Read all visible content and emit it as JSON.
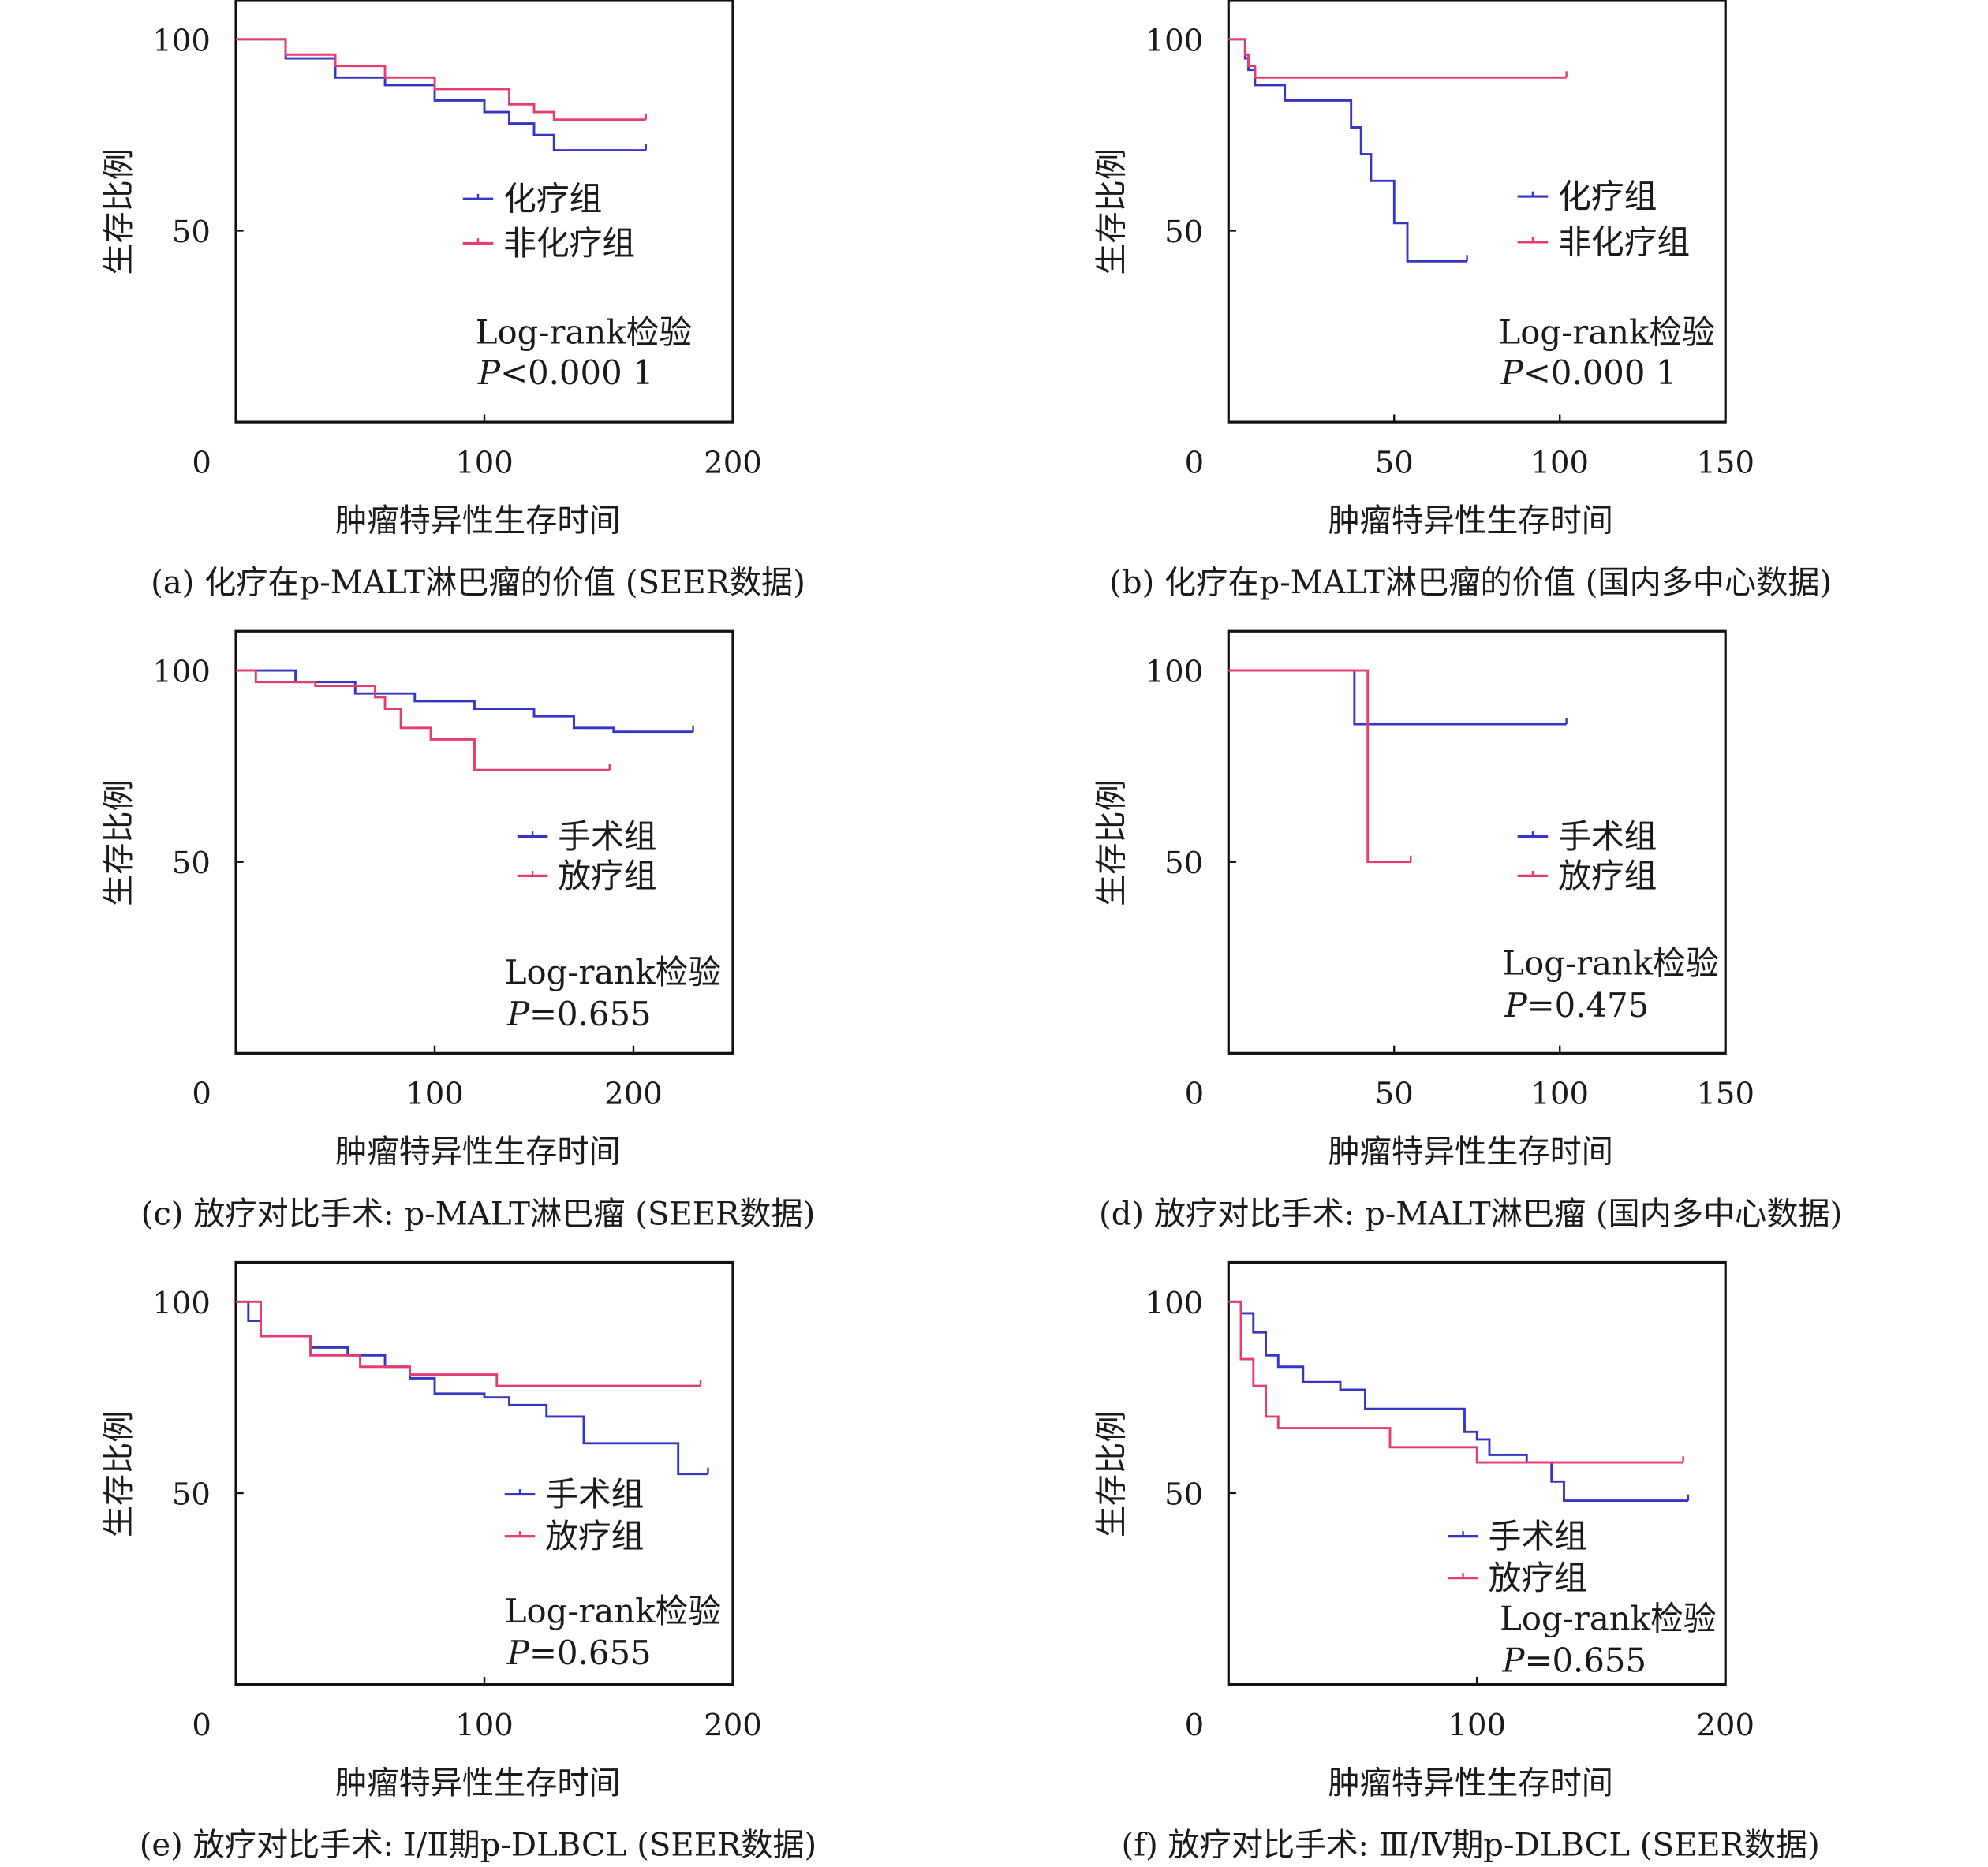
{
  "colors": {
    "group1": "#3535c8",
    "group2": "#e63c6e",
    "axis": "#111111"
  },
  "chart_data": [
    {
      "type": "line",
      "id": "a",
      "caption": "(a) 化疗在p-MALT淋巴瘤的价值 (SEER数据)",
      "xlabel": "肿瘤特异性生存时间",
      "ylabel": "生存比例",
      "xlim": [
        0,
        200
      ],
      "ylim": [
        0,
        110
      ],
      "xticks": [
        "0",
        "100",
        "200"
      ],
      "xtick_values": [
        0,
        100,
        200
      ],
      "yticks": [
        "50",
        "100"
      ],
      "ytick_values": [
        50,
        100
      ],
      "legend_position": "center-right",
      "series": [
        {
          "name": "化疗组",
          "color_key": "group1",
          "points": [
            [
              0,
              100
            ],
            [
              20,
              95
            ],
            [
              40,
              90
            ],
            [
              60,
              88
            ],
            [
              80,
              84
            ],
            [
              100,
              81
            ],
            [
              110,
              78
            ],
            [
              120,
              75
            ],
            [
              128,
              71
            ],
            [
              165,
              71
            ]
          ]
        },
        {
          "name": "非化疗组",
          "color_key": "group2",
          "points": [
            [
              0,
              100
            ],
            [
              20,
              96
            ],
            [
              40,
              93
            ],
            [
              60,
              90
            ],
            [
              80,
              87
            ],
            [
              110,
              83
            ],
            [
              120,
              81
            ],
            [
              128,
              79
            ],
            [
              165,
              79
            ]
          ]
        }
      ],
      "test": "Log-rank检验",
      "p_symbol": "P",
      "p_text": "<0.000 1"
    },
    {
      "type": "line",
      "id": "b",
      "caption": "(b) 化疗在p-MALT淋巴瘤的价值 (国内多中心数据)",
      "xlabel": "肿瘤特异性生存时间",
      "ylabel": "生存比例",
      "xlim": [
        0,
        150
      ],
      "ylim": [
        0,
        110
      ],
      "xticks": [
        "0",
        "50",
        "100",
        "150"
      ],
      "xtick_values": [
        0,
        50,
        100,
        150
      ],
      "yticks": [
        "50",
        "100"
      ],
      "ytick_values": [
        50,
        100
      ],
      "legend_position": "center-right",
      "series": [
        {
          "name": "化疗组",
          "color_key": "group1",
          "points": [
            [
              0,
              100
            ],
            [
              4,
              100
            ],
            [
              5,
              95
            ],
            [
              6,
              92
            ],
            [
              8,
              88
            ],
            [
              17,
              88
            ],
            [
              17,
              84
            ],
            [
              37,
              84
            ],
            [
              37,
              77
            ],
            [
              40,
              77
            ],
            [
              40,
              70
            ],
            [
              43,
              70
            ],
            [
              43,
              63
            ],
            [
              50,
              63
            ],
            [
              50,
              52
            ],
            [
              54,
              52
            ],
            [
              54,
              42
            ],
            [
              72,
              42
            ]
          ]
        },
        {
          "name": "非化疗组",
          "color_key": "group2",
          "points": [
            [
              0,
              100
            ],
            [
              4,
              100
            ],
            [
              5,
              96
            ],
            [
              6,
              93
            ],
            [
              8,
              90
            ],
            [
              102,
              90
            ]
          ]
        }
      ],
      "test": "Log-rank检验",
      "p_symbol": "P",
      "p_text": "<0.000 1"
    },
    {
      "type": "line",
      "id": "c",
      "caption": "(c) 放疗对比手术: p-MALT淋巴瘤 (SEER数据)",
      "xlabel": "肿瘤特异性生存时间",
      "ylabel": "生存比例",
      "xlim": [
        0,
        250
      ],
      "ylim": [
        0,
        110
      ],
      "xticks": [
        "0",
        "100",
        "200"
      ],
      "xtick_values": [
        0,
        100,
        200
      ],
      "yticks": [
        "50",
        "100"
      ],
      "ytick_values": [
        50,
        100
      ],
      "legend_position": "center-right",
      "series": [
        {
          "name": "手术组",
          "color_key": "group1",
          "points": [
            [
              0,
              100
            ],
            [
              30,
              97
            ],
            [
              60,
              94
            ],
            [
              90,
              92
            ],
            [
              120,
              90
            ],
            [
              150,
              88
            ],
            [
              170,
              85
            ],
            [
              190,
              84
            ],
            [
              230,
              84
            ]
          ]
        },
        {
          "name": "放疗组",
          "color_key": "group2",
          "points": [
            [
              0,
              100
            ],
            [
              10,
              97
            ],
            [
              40,
              96
            ],
            [
              70,
              93
            ],
            [
              75,
              90
            ],
            [
              83,
              85
            ],
            [
              98,
              85
            ],
            [
              98,
              82
            ],
            [
              120,
              82
            ],
            [
              120,
              74
            ],
            [
              188,
              74
            ]
          ]
        }
      ],
      "test": "Log-rank检验",
      "p_symbol": "P",
      "p_text": "=0.655"
    },
    {
      "type": "line",
      "id": "d",
      "caption": "(d) 放疗对比手术: p-MALT淋巴瘤 (国内多中心数据)",
      "xlabel": "肿瘤特异性生存时间",
      "ylabel": "生存比例",
      "xlim": [
        0,
        150
      ],
      "ylim": [
        0,
        110
      ],
      "xticks": [
        "0",
        "50",
        "100",
        "150"
      ],
      "xtick_values": [
        0,
        50,
        100,
        150
      ],
      "yticks": [
        "50",
        "100"
      ],
      "ytick_values": [
        50,
        100
      ],
      "legend_position": "center-right",
      "series": [
        {
          "name": "手术组",
          "color_key": "group1",
          "points": [
            [
              0,
              100
            ],
            [
              38,
              100
            ],
            [
              38,
              86
            ],
            [
              102,
              86
            ]
          ]
        },
        {
          "name": "放疗组",
          "color_key": "group2",
          "points": [
            [
              0,
              100
            ],
            [
              42,
              100
            ],
            [
              42,
              50
            ],
            [
              55,
              50
            ]
          ]
        }
      ],
      "test": "Log-rank检验",
      "p_symbol": "P",
      "p_text": "=0.475"
    },
    {
      "type": "line",
      "id": "e",
      "caption": "(e) 放疗对比手术: Ⅰ/Ⅱ期p-DLBCL (SEER数据)",
      "xlabel": "肿瘤特异性生存时间",
      "ylabel": "生存比例",
      "xlim": [
        0,
        200
      ],
      "ylim": [
        0,
        110
      ],
      "xticks": [
        "0",
        "100",
        "200"
      ],
      "xtick_values": [
        0,
        100,
        200
      ],
      "yticks": [
        "50",
        "100"
      ],
      "ytick_values": [
        50,
        100
      ],
      "legend_position": "center-right",
      "series": [
        {
          "name": "手术组",
          "color_key": "group1",
          "points": [
            [
              0,
              100
            ],
            [
              5,
              95
            ],
            [
              10,
              91
            ],
            [
              30,
              88
            ],
            [
              45,
              86
            ],
            [
              60,
              83
            ],
            [
              70,
              80
            ],
            [
              80,
              76
            ],
            [
              100,
              75
            ],
            [
              110,
              73
            ],
            [
              125,
              70
            ],
            [
              140,
              63
            ],
            [
              178,
              63
            ],
            [
              178,
              55
            ],
            [
              190,
              55
            ]
          ]
        },
        {
          "name": "放疗组",
          "color_key": "group2",
          "points": [
            [
              0,
              100
            ],
            [
              10,
              91
            ],
            [
              30,
              86
            ],
            [
              50,
              83
            ],
            [
              70,
              81
            ],
            [
              105,
              81
            ],
            [
              105,
              78
            ],
            [
              187,
              78
            ]
          ]
        }
      ],
      "test": "Log-rank检验",
      "p_symbol": "P",
      "p_text": "=0.655"
    },
    {
      "type": "line",
      "id": "f",
      "caption": "(f) 放疗对比手术: Ⅲ/Ⅳ期p-DLBCL (SEER数据)",
      "xlabel": "肿瘤特异性生存时间",
      "ylabel": "生存比例",
      "xlim": [
        0,
        200
      ],
      "ylim": [
        0,
        110
      ],
      "xticks": [
        "0",
        "100",
        "200"
      ],
      "xtick_values": [
        0,
        100,
        200
      ],
      "yticks": [
        "50",
        "100"
      ],
      "ytick_values": [
        50,
        100
      ],
      "legend_position": "bottom-right",
      "series": [
        {
          "name": "手术组",
          "color_key": "group1",
          "points": [
            [
              0,
              100
            ],
            [
              5,
              97
            ],
            [
              10,
              92
            ],
            [
              15,
              86
            ],
            [
              20,
              83
            ],
            [
              30,
              79
            ],
            [
              45,
              77
            ],
            [
              55,
              72
            ],
            [
              90,
              72
            ],
            [
              95,
              66
            ],
            [
              100,
              64
            ],
            [
              105,
              60
            ],
            [
              120,
              58
            ],
            [
              130,
              53
            ],
            [
              135,
              48
            ],
            [
              185,
              48
            ]
          ]
        },
        {
          "name": "放疗组",
          "color_key": "group2",
          "points": [
            [
              0,
              100
            ],
            [
              5,
              85
            ],
            [
              10,
              78
            ],
            [
              15,
              70
            ],
            [
              20,
              67
            ],
            [
              65,
              67
            ],
            [
              65,
              62
            ],
            [
              95,
              62
            ],
            [
              100,
              58
            ],
            [
              183,
              58
            ]
          ]
        }
      ],
      "test": "Log-rank检验",
      "p_symbol": "P",
      "p_text": "=0.655"
    }
  ]
}
